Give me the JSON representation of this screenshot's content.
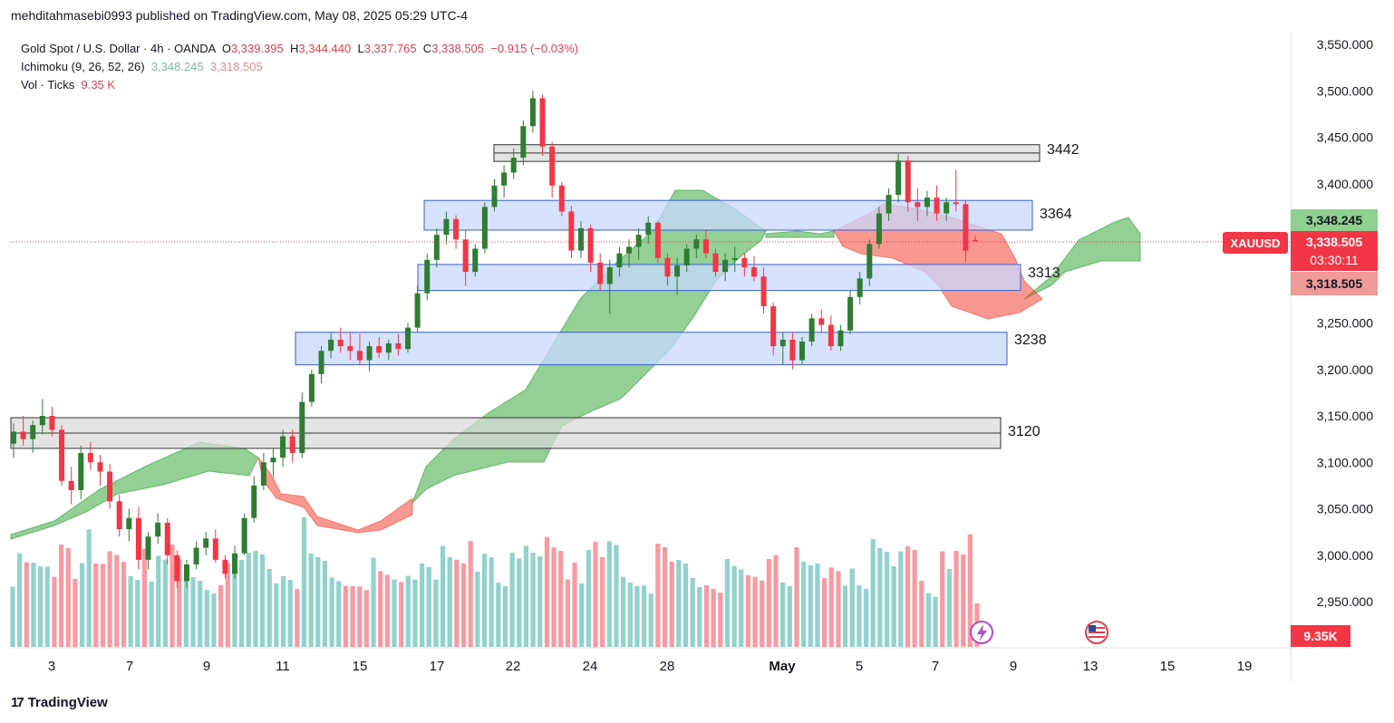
{
  "header": {
    "publisher": "mehditahmasebi0993 published on TradingView.com, May 08, 2025 05:29 UTC-4"
  },
  "legend": {
    "symbol": "Gold Spot / U.S. Dollar · 4h · OANDA",
    "open_label": "O",
    "open": "3,339.395",
    "high_label": "H",
    "high": "3,344.440",
    "low_label": "L",
    "low": "3,337.765",
    "close_label": "C",
    "close": "3,338.505",
    "change": "−0.915 (−0.03%)",
    "ichimoku_label": "Ichimoku (9, 26, 52, 26)",
    "ichimoku_v1": "3,348.245",
    "ichimoku_v2": "3,318.505",
    "vol_label": "Vol · Ticks",
    "vol_value": "9.35 K"
  },
  "price_badges": {
    "span_a": "3,348.245",
    "ticker": "XAUUSD",
    "last": "3,338.505",
    "countdown": "03:30:11",
    "span_b": "3,318.505",
    "volume": "9.35K"
  },
  "footer": {
    "brand": "TradingView",
    "brand_mark": "17"
  },
  "colors": {
    "up": "#26a69a",
    "up_candle": "#2e7d32",
    "down": "#f23645",
    "cloud_green": "#4caf50",
    "cloud_red": "#f44336",
    "zone_blue": "#c8d8ff",
    "zone_grey": "#d9d9d9"
  },
  "chart_data": {
    "type": "candlestick",
    "y_axis_ticks": [
      "3,550.000",
      "3,500.000",
      "3,450.000",
      "3,400.000",
      "3,350.000",
      "3,300.000",
      "3,250.000",
      "3,200.000",
      "3,150.000",
      "3,100.000",
      "3,050.000",
      "3,000.000",
      "2,950.000"
    ],
    "x_axis_ticks": [
      "3",
      "7",
      "9",
      "11",
      "15",
      "17",
      "22",
      "24",
      "28",
      "May",
      "5",
      "7",
      "9",
      "13",
      "15",
      "19"
    ],
    "ylim": [
      2905,
      3578
    ],
    "zones": [
      {
        "label": "3442",
        "low": 3424,
        "high": 3442,
        "style": "grey"
      },
      {
        "label": "3364",
        "low": 3350,
        "high": 3382,
        "style": "blue"
      },
      {
        "label": "3313",
        "low": 3285,
        "high": 3313,
        "style": "blue"
      },
      {
        "label": "3238",
        "low": 3205,
        "high": 3240,
        "style": "blue"
      },
      {
        "label": "3120",
        "low": 3115,
        "high": 3148,
        "style": "grey"
      }
    ],
    "candles": [
      [
        3120,
        3142,
        3105,
        3133
      ],
      [
        3133,
        3150,
        3118,
        3125
      ],
      [
        3125,
        3145,
        3110,
        3140
      ],
      [
        3140,
        3168,
        3130,
        3150
      ],
      [
        3150,
        3160,
        3128,
        3135
      ],
      [
        3135,
        3140,
        3075,
        3080
      ],
      [
        3080,
        3095,
        3055,
        3070
      ],
      [
        3070,
        3118,
        3060,
        3110
      ],
      [
        3110,
        3122,
        3092,
        3100
      ],
      [
        3100,
        3108,
        3075,
        3090
      ],
      [
        3090,
        3098,
        3050,
        3058
      ],
      [
        3058,
        3065,
        3020,
        3028
      ],
      [
        3028,
        3050,
        3015,
        3040
      ],
      [
        3040,
        3052,
        2985,
        2995
      ],
      [
        2995,
        3025,
        2985,
        3020
      ],
      [
        3020,
        3045,
        3012,
        3035
      ],
      [
        3035,
        3040,
        2990,
        3000
      ],
      [
        3000,
        3005,
        2965,
        2972
      ],
      [
        2972,
        2995,
        2965,
        2990
      ],
      [
        2990,
        3015,
        2985,
        3008
      ],
      [
        3008,
        3025,
        3000,
        3018
      ],
      [
        3018,
        3028,
        2992,
        2995
      ],
      [
        2995,
        3000,
        2975,
        2980
      ],
      [
        2980,
        3010,
        2975,
        3002
      ],
      [
        3002,
        3045,
        3000,
        3040
      ],
      [
        3040,
        3085,
        3035,
        3075
      ],
      [
        3075,
        3110,
        3070,
        3100
      ],
      [
        3100,
        3115,
        3085,
        3105
      ],
      [
        3105,
        3135,
        3095,
        3128
      ],
      [
        3128,
        3135,
        3100,
        3110
      ],
      [
        3110,
        3175,
        3105,
        3165
      ],
      [
        3165,
        3200,
        3160,
        3195
      ],
      [
        3195,
        3225,
        3185,
        3220
      ],
      [
        3220,
        3240,
        3212,
        3232
      ],
      [
        3232,
        3245,
        3218,
        3225
      ],
      [
        3225,
        3240,
        3210,
        3220
      ],
      [
        3220,
        3238,
        3205,
        3210
      ],
      [
        3210,
        3230,
        3198,
        3225
      ],
      [
        3225,
        3235,
        3212,
        3218
      ],
      [
        3218,
        3232,
        3210,
        3228
      ],
      [
        3228,
        3238,
        3215,
        3222
      ],
      [
        3222,
        3250,
        3218,
        3245
      ],
      [
        3245,
        3290,
        3240,
        3282
      ],
      [
        3282,
        3325,
        3275,
        3318
      ],
      [
        3318,
        3352,
        3310,
        3345
      ],
      [
        3345,
        3370,
        3335,
        3362
      ],
      [
        3362,
        3366,
        3330,
        3340
      ],
      [
        3340,
        3350,
        3290,
        3305
      ],
      [
        3305,
        3335,
        3300,
        3330
      ],
      [
        3330,
        3380,
        3325,
        3375
      ],
      [
        3375,
        3405,
        3370,
        3398
      ],
      [
        3398,
        3420,
        3385,
        3412
      ],
      [
        3412,
        3438,
        3405,
        3428
      ],
      [
        3428,
        3468,
        3420,
        3462
      ],
      [
        3462,
        3500,
        3455,
        3492
      ],
      [
        3492,
        3496,
        3430,
        3440
      ],
      [
        3440,
        3445,
        3385,
        3398
      ],
      [
        3398,
        3402,
        3365,
        3370
      ],
      [
        3370,
        3376,
        3320,
        3328
      ],
      [
        3328,
        3360,
        3320,
        3352
      ],
      [
        3352,
        3356,
        3305,
        3315
      ],
      [
        3315,
        3325,
        3285,
        3292
      ],
      [
        3292,
        3318,
        3260,
        3310
      ],
      [
        3310,
        3332,
        3300,
        3325
      ],
      [
        3325,
        3340,
        3310,
        3332
      ],
      [
        3332,
        3352,
        3318,
        3345
      ],
      [
        3345,
        3365,
        3335,
        3358
      ],
      [
        3358,
        3360,
        3315,
        3320
      ],
      [
        3320,
        3325,
        3290,
        3300
      ],
      [
        3300,
        3320,
        3280,
        3312
      ],
      [
        3312,
        3335,
        3305,
        3330
      ],
      [
        3330,
        3345,
        3320,
        3340
      ],
      [
        3340,
        3350,
        3320,
        3325
      ],
      [
        3325,
        3330,
        3300,
        3305
      ],
      [
        3305,
        3325,
        3295,
        3318
      ],
      [
        3318,
        3332,
        3305,
        3320
      ],
      [
        3320,
        3325,
        3300,
        3310
      ],
      [
        3310,
        3322,
        3295,
        3300
      ],
      [
        3300,
        3310,
        3260,
        3268
      ],
      [
        3268,
        3272,
        3215,
        3225
      ],
      [
        3225,
        3240,
        3205,
        3232
      ],
      [
        3232,
        3240,
        3200,
        3210
      ],
      [
        3210,
        3235,
        3205,
        3230
      ],
      [
        3230,
        3260,
        3225,
        3255
      ],
      [
        3255,
        3265,
        3240,
        3248
      ],
      [
        3248,
        3258,
        3220,
        3225
      ],
      [
        3225,
        3248,
        3220,
        3242
      ],
      [
        3242,
        3285,
        3238,
        3278
      ],
      [
        3278,
        3305,
        3270,
        3298
      ],
      [
        3298,
        3340,
        3290,
        3335
      ],
      [
        3335,
        3375,
        3330,
        3368
      ],
      [
        3368,
        3395,
        3360,
        3388
      ],
      [
        3388,
        3432,
        3380,
        3425
      ],
      [
        3425,
        3430,
        3370,
        3380
      ],
      [
        3380,
        3395,
        3360,
        3375
      ],
      [
        3375,
        3392,
        3365,
        3385
      ],
      [
        3385,
        3398,
        3360,
        3368
      ],
      [
        3368,
        3385,
        3360,
        3380
      ],
      [
        3380,
        3415,
        3370,
        3378
      ],
      [
        3378,
        3382,
        3315,
        3328
      ],
      [
        3339.395,
        3344.44,
        3337.765,
        3338.505
      ]
    ],
    "ichimoku": {
      "span_a_last": "3,348.245",
      "span_b_last": "3,318.505"
    }
  }
}
